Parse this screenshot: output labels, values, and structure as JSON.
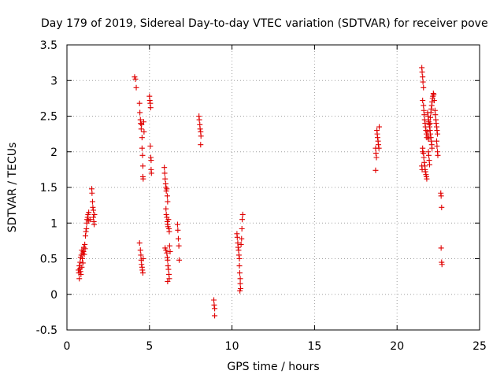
{
  "chart_data": {
    "type": "scatter",
    "title": "Day 179 of 2019, Sidereal Day-to-day VTEC variation (SDTVAR) for receiver pove",
    "xlabel": "GPS time / hours",
    "ylabel": "SDTVAR / TECUs",
    "xlim": [
      0,
      25
    ],
    "ylim": [
      -0.5,
      3.5
    ],
    "xticks": [
      0,
      5,
      10,
      15,
      20,
      25
    ],
    "xtick_labels": [
      "0",
      "5",
      "10",
      "15",
      "20",
      "25"
    ],
    "yticks": [
      -0.5,
      0,
      0.5,
      1,
      1.5,
      2,
      2.5,
      3,
      3.5
    ],
    "ytick_labels": [
      "-0.5",
      "0",
      "0.5",
      "1",
      "1.5",
      "2",
      "2.5",
      "3",
      "3.5"
    ],
    "grid": true,
    "marker": "+",
    "color": "#e00000",
    "series": [
      {
        "name": "SDTVAR",
        "points": [
          [
            0.7,
            0.34
          ],
          [
            0.72,
            0.3
          ],
          [
            0.75,
            0.4
          ],
          [
            0.75,
            0.22
          ],
          [
            0.78,
            0.36
          ],
          [
            0.8,
            0.45
          ],
          [
            0.82,
            0.32
          ],
          [
            0.83,
            0.52
          ],
          [
            0.85,
            0.28
          ],
          [
            0.87,
            0.55
          ],
          [
            0.9,
            0.38
          ],
          [
            0.9,
            0.62
          ],
          [
            0.93,
            0.5
          ],
          [
            0.95,
            0.58
          ],
          [
            0.97,
            0.44
          ],
          [
            1.0,
            0.6
          ],
          [
            1.02,
            0.66
          ],
          [
            1.05,
            0.56
          ],
          [
            1.08,
            0.7
          ],
          [
            1.1,
            0.64
          ],
          [
            1.12,
            0.82
          ],
          [
            1.15,
            0.88
          ],
          [
            1.18,
            0.92
          ],
          [
            1.2,
            1.0
          ],
          [
            1.22,
            1.05
          ],
          [
            1.25,
            1.08
          ],
          [
            1.28,
            1.12
          ],
          [
            1.3,
            1.03
          ],
          [
            1.32,
            1.15
          ],
          [
            1.4,
            1.05
          ],
          [
            1.5,
            1.48
          ],
          [
            1.52,
            1.42
          ],
          [
            1.55,
            1.3
          ],
          [
            1.57,
            1.22
          ],
          [
            1.6,
            1.18
          ],
          [
            1.6,
            1.08
          ],
          [
            1.63,
            1.02
          ],
          [
            1.65,
            0.98
          ],
          [
            1.67,
            1.12
          ],
          [
            4.1,
            3.05
          ],
          [
            4.15,
            3.02
          ],
          [
            4.2,
            2.9
          ],
          [
            4.4,
            2.68
          ],
          [
            4.42,
            2.55
          ],
          [
            4.45,
            2.45
          ],
          [
            4.47,
            2.4
          ],
          [
            4.5,
            2.32
          ],
          [
            4.52,
            2.38
          ],
          [
            4.55,
            2.2
          ],
          [
            4.55,
            2.05
          ],
          [
            4.58,
            1.95
          ],
          [
            4.6,
            1.8
          ],
          [
            4.6,
            1.65
          ],
          [
            4.62,
            1.62
          ],
          [
            4.65,
            2.42
          ],
          [
            4.67,
            2.28
          ],
          [
            4.4,
            0.72
          ],
          [
            4.45,
            0.62
          ],
          [
            4.48,
            0.55
          ],
          [
            4.5,
            0.48
          ],
          [
            4.52,
            0.42
          ],
          [
            4.55,
            0.38
          ],
          [
            4.57,
            0.34
          ],
          [
            4.6,
            0.3
          ],
          [
            4.62,
            0.5
          ],
          [
            5.0,
            2.78
          ],
          [
            5.02,
            2.72
          ],
          [
            5.05,
            2.68
          ],
          [
            5.07,
            2.62
          ],
          [
            5.05,
            2.08
          ],
          [
            5.08,
            1.92
          ],
          [
            5.1,
            1.88
          ],
          [
            5.1,
            1.75
          ],
          [
            5.12,
            1.7
          ],
          [
            5.9,
            1.78
          ],
          [
            5.92,
            1.7
          ],
          [
            5.95,
            1.62
          ],
          [
            5.98,
            1.55
          ],
          [
            6.0,
            1.5
          ],
          [
            6.02,
            1.45
          ],
          [
            6.05,
            1.48
          ],
          [
            6.08,
            1.38
          ],
          [
            6.1,
            1.3
          ],
          [
            6.0,
            1.2
          ],
          [
            6.02,
            1.12
          ],
          [
            6.05,
            1.08
          ],
          [
            6.08,
            1.02
          ],
          [
            6.1,
            0.98
          ],
          [
            6.12,
            0.95
          ],
          [
            6.15,
            1.05
          ],
          [
            6.18,
            0.92
          ],
          [
            6.2,
            0.88
          ],
          [
            5.95,
            0.65
          ],
          [
            6.0,
            0.62
          ],
          [
            6.05,
            0.58
          ],
          [
            6.08,
            0.52
          ],
          [
            6.1,
            0.48
          ],
          [
            6.12,
            0.4
          ],
          [
            6.15,
            0.35
          ],
          [
            6.18,
            0.28
          ],
          [
            6.2,
            0.22
          ],
          [
            6.1,
            0.18
          ],
          [
            6.22,
            0.68
          ],
          [
            6.25,
            0.6
          ],
          [
            6.7,
            0.98
          ],
          [
            6.72,
            0.9
          ],
          [
            6.75,
            0.78
          ],
          [
            6.78,
            0.68
          ],
          [
            6.8,
            0.48
          ],
          [
            8.0,
            2.5
          ],
          [
            8.02,
            2.45
          ],
          [
            8.05,
            2.38
          ],
          [
            8.07,
            2.32
          ],
          [
            8.1,
            2.28
          ],
          [
            8.12,
            2.22
          ],
          [
            8.1,
            2.1
          ],
          [
            8.9,
            -0.08
          ],
          [
            8.92,
            -0.15
          ],
          [
            8.95,
            -0.2
          ],
          [
            8.95,
            -0.3
          ],
          [
            10.3,
            0.85
          ],
          [
            10.32,
            0.8
          ],
          [
            10.35,
            0.72
          ],
          [
            10.37,
            0.66
          ],
          [
            10.4,
            0.62
          ],
          [
            10.42,
            0.55
          ],
          [
            10.45,
            0.5
          ],
          [
            10.45,
            0.4
          ],
          [
            10.47,
            0.3
          ],
          [
            10.5,
            0.22
          ],
          [
            10.5,
            0.15
          ],
          [
            10.52,
            0.08
          ],
          [
            10.55,
            0.7
          ],
          [
            10.58,
            0.78
          ],
          [
            10.6,
            0.92
          ],
          [
            10.62,
            1.05
          ],
          [
            10.65,
            1.12
          ],
          [
            10.48,
            0.05
          ],
          [
            18.7,
            2.05
          ],
          [
            18.72,
            1.98
          ],
          [
            18.75,
            1.92
          ],
          [
            18.78,
            2.3
          ],
          [
            18.8,
            2.25
          ],
          [
            18.82,
            2.2
          ],
          [
            18.85,
            2.15
          ],
          [
            18.87,
            2.1
          ],
          [
            18.9,
            2.05
          ],
          [
            18.92,
            2.35
          ],
          [
            18.7,
            1.74
          ],
          [
            21.5,
            3.18
          ],
          [
            21.52,
            3.12
          ],
          [
            21.55,
            3.05
          ],
          [
            21.57,
            2.98
          ],
          [
            21.6,
            2.9
          ],
          [
            21.55,
            2.72
          ],
          [
            21.6,
            2.65
          ],
          [
            21.62,
            2.58
          ],
          [
            21.65,
            2.52
          ],
          [
            21.67,
            2.45
          ],
          [
            21.7,
            2.4
          ],
          [
            21.72,
            2.35
          ],
          [
            21.75,
            2.3
          ],
          [
            21.78,
            2.25
          ],
          [
            21.8,
            2.2
          ],
          [
            21.55,
            2.05
          ],
          [
            21.6,
            1.98
          ],
          [
            21.62,
            1.92
          ],
          [
            21.65,
            1.85
          ],
          [
            21.68,
            1.8
          ],
          [
            21.7,
            1.75
          ],
          [
            21.72,
            1.72
          ],
          [
            21.75,
            1.68
          ],
          [
            21.78,
            1.65
          ],
          [
            21.8,
            1.62
          ],
          [
            21.5,
            1.8
          ],
          [
            21.52,
            1.75
          ],
          [
            21.55,
            2.0
          ],
          [
            21.85,
            2.55
          ],
          [
            21.88,
            2.5
          ],
          [
            21.9,
            2.45
          ],
          [
            21.92,
            2.42
          ],
          [
            21.95,
            2.38
          ],
          [
            21.97,
            2.35
          ],
          [
            22.0,
            2.4
          ],
          [
            22.02,
            2.48
          ],
          [
            22.05,
            2.55
          ],
          [
            22.07,
            2.6
          ],
          [
            22.1,
            2.65
          ],
          [
            22.12,
            2.7
          ],
          [
            22.15,
            2.75
          ],
          [
            22.17,
            2.78
          ],
          [
            22.2,
            2.82
          ],
          [
            22.22,
            2.8
          ],
          [
            22.25,
            2.72
          ],
          [
            22.0,
            2.3
          ],
          [
            22.02,
            2.25
          ],
          [
            22.05,
            2.2
          ],
          [
            22.07,
            2.15
          ],
          [
            22.1,
            2.1
          ],
          [
            22.12,
            2.05
          ],
          [
            21.9,
            2.0
          ],
          [
            21.92,
            1.95
          ],
          [
            21.95,
            1.88
          ],
          [
            21.97,
            1.82
          ],
          [
            21.85,
            2.28
          ],
          [
            21.88,
            2.22
          ],
          [
            21.9,
            2.18
          ],
          [
            22.3,
            2.58
          ],
          [
            22.32,
            2.52
          ],
          [
            22.35,
            2.45
          ],
          [
            22.37,
            2.4
          ],
          [
            22.4,
            2.35
          ],
          [
            22.42,
            2.3
          ],
          [
            22.45,
            2.25
          ],
          [
            22.4,
            2.15
          ],
          [
            22.42,
            2.08
          ],
          [
            22.45,
            2.0
          ],
          [
            22.47,
            1.95
          ],
          [
            22.65,
            1.42
          ],
          [
            22.67,
            1.38
          ],
          [
            22.7,
            1.22
          ],
          [
            22.67,
            0.65
          ],
          [
            22.7,
            0.45
          ],
          [
            22.72,
            0.42
          ]
        ]
      }
    ]
  }
}
